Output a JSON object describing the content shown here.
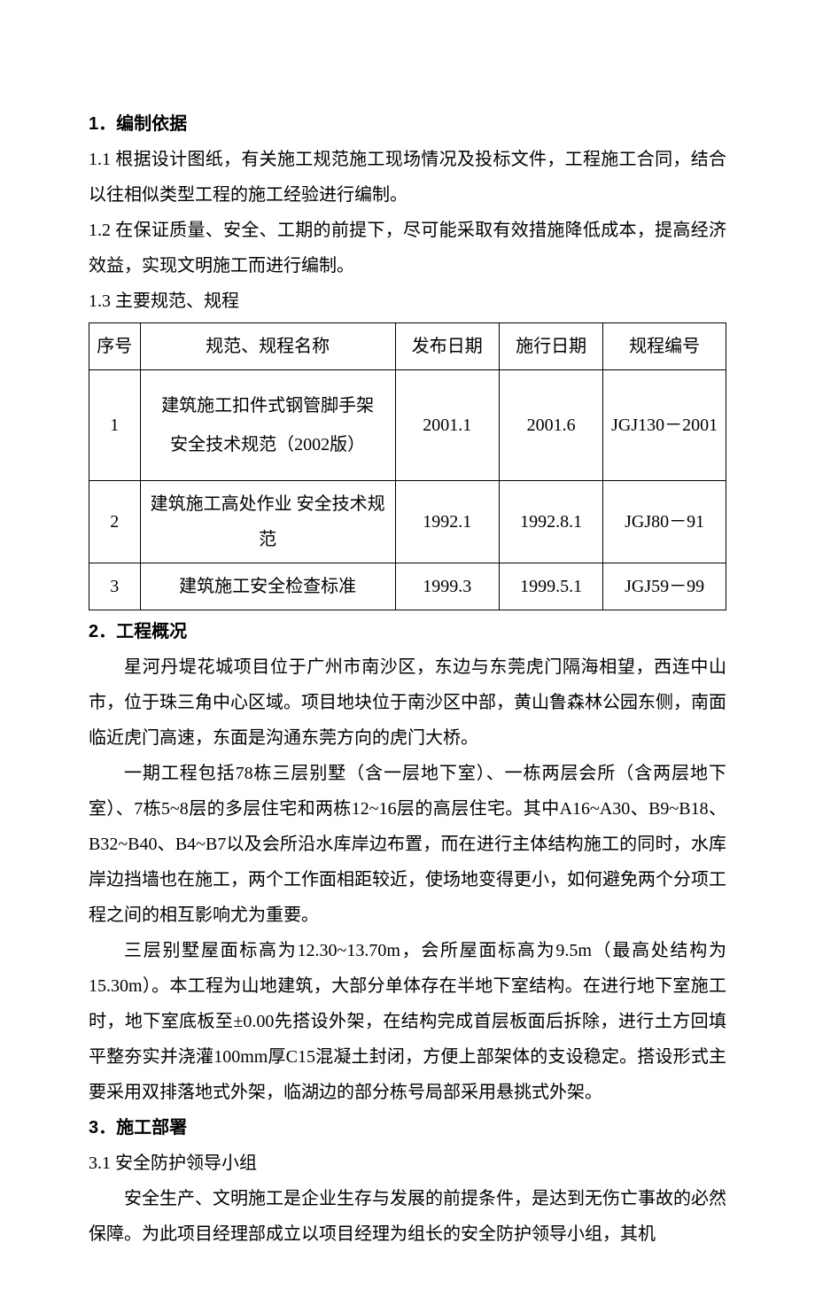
{
  "section1": {
    "heading": "1．编制依据",
    "p1": "1.1  根据设计图纸，有关施工规范施工现场情况及投标文件，工程施工合同，结合以往相似类型工程的施工经验进行编制。",
    "p2": "1.2  在保证质量、安全、工期的前提下，尽可能采取有效措施降低成本，提高经济效益，实现文明施工而进行编制。",
    "p3": "1.3  主要规范、规程"
  },
  "table": {
    "columns": [
      "序号",
      "规范、规程名称",
      "发布日期",
      "施行日期",
      "规程编号"
    ],
    "rows": [
      {
        "seq": "1",
        "name_line1": "建筑施工扣件式钢管脚手架",
        "name_line2": "安全技术规范（2002版）",
        "date1": "2001.1",
        "date2": "2001.6",
        "code": "JGJ130－2001"
      },
      {
        "seq": "2",
        "name": "建筑施工高处作业 安全技术规范",
        "date1": "1992.1",
        "date2": "1992.8.1",
        "code": "JGJ80－91"
      },
      {
        "seq": "3",
        "name": "建筑施工安全检查标准",
        "date1": "1999.3",
        "date2": "1999.5.1",
        "code": "JGJ59－99"
      }
    ]
  },
  "section2": {
    "heading": "2．工程概况",
    "p1": "星河丹堤花城项目位于广州市南沙区，东边与东莞虎门隔海相望，西连中山市，位于珠三角中心区域。项目地块位于南沙区中部，黄山鲁森林公园东侧，南面临近虎门高速，东面是沟通东莞方向的虎门大桥。",
    "p2": "一期工程包括78栋三层别墅（含一层地下室）、一栋两层会所（含两层地下室）、7栋5~8层的多层住宅和两栋12~16层的高层住宅。其中A16~A30、B9~B18、B32~B40、B4~B7以及会所沿水库岸边布置，而在进行主体结构施工的同时，水库岸边挡墙也在施工，两个工作面相距较近，使场地变得更小，如何避免两个分项工程之间的相互影响尤为重要。",
    "p3": "三层别墅屋面标高为12.30~13.70m，会所屋面标高为9.5m（最高处结构为15.30m）。本工程为山地建筑，大部分单体存在半地下室结构。在进行地下室施工时，地下室底板至±0.00先搭设外架，在结构完成首层板面后拆除，进行土方回填平整夯实并浇灌100mm厚C15混凝土封闭，方便上部架体的支设稳定。搭设形式主要采用双排落地式外架，临湖边的部分栋号局部采用悬挑式外架。"
  },
  "section3": {
    "heading": "3．施工部署",
    "p1": "3.1  安全防护领导小组",
    "p2": "安全生产、文明施工是企业生存与发展的前提条件，是达到无伤亡事故的必然保障。为此项目经理部成立以项目经理为组长的安全防护领导小组，其机"
  }
}
